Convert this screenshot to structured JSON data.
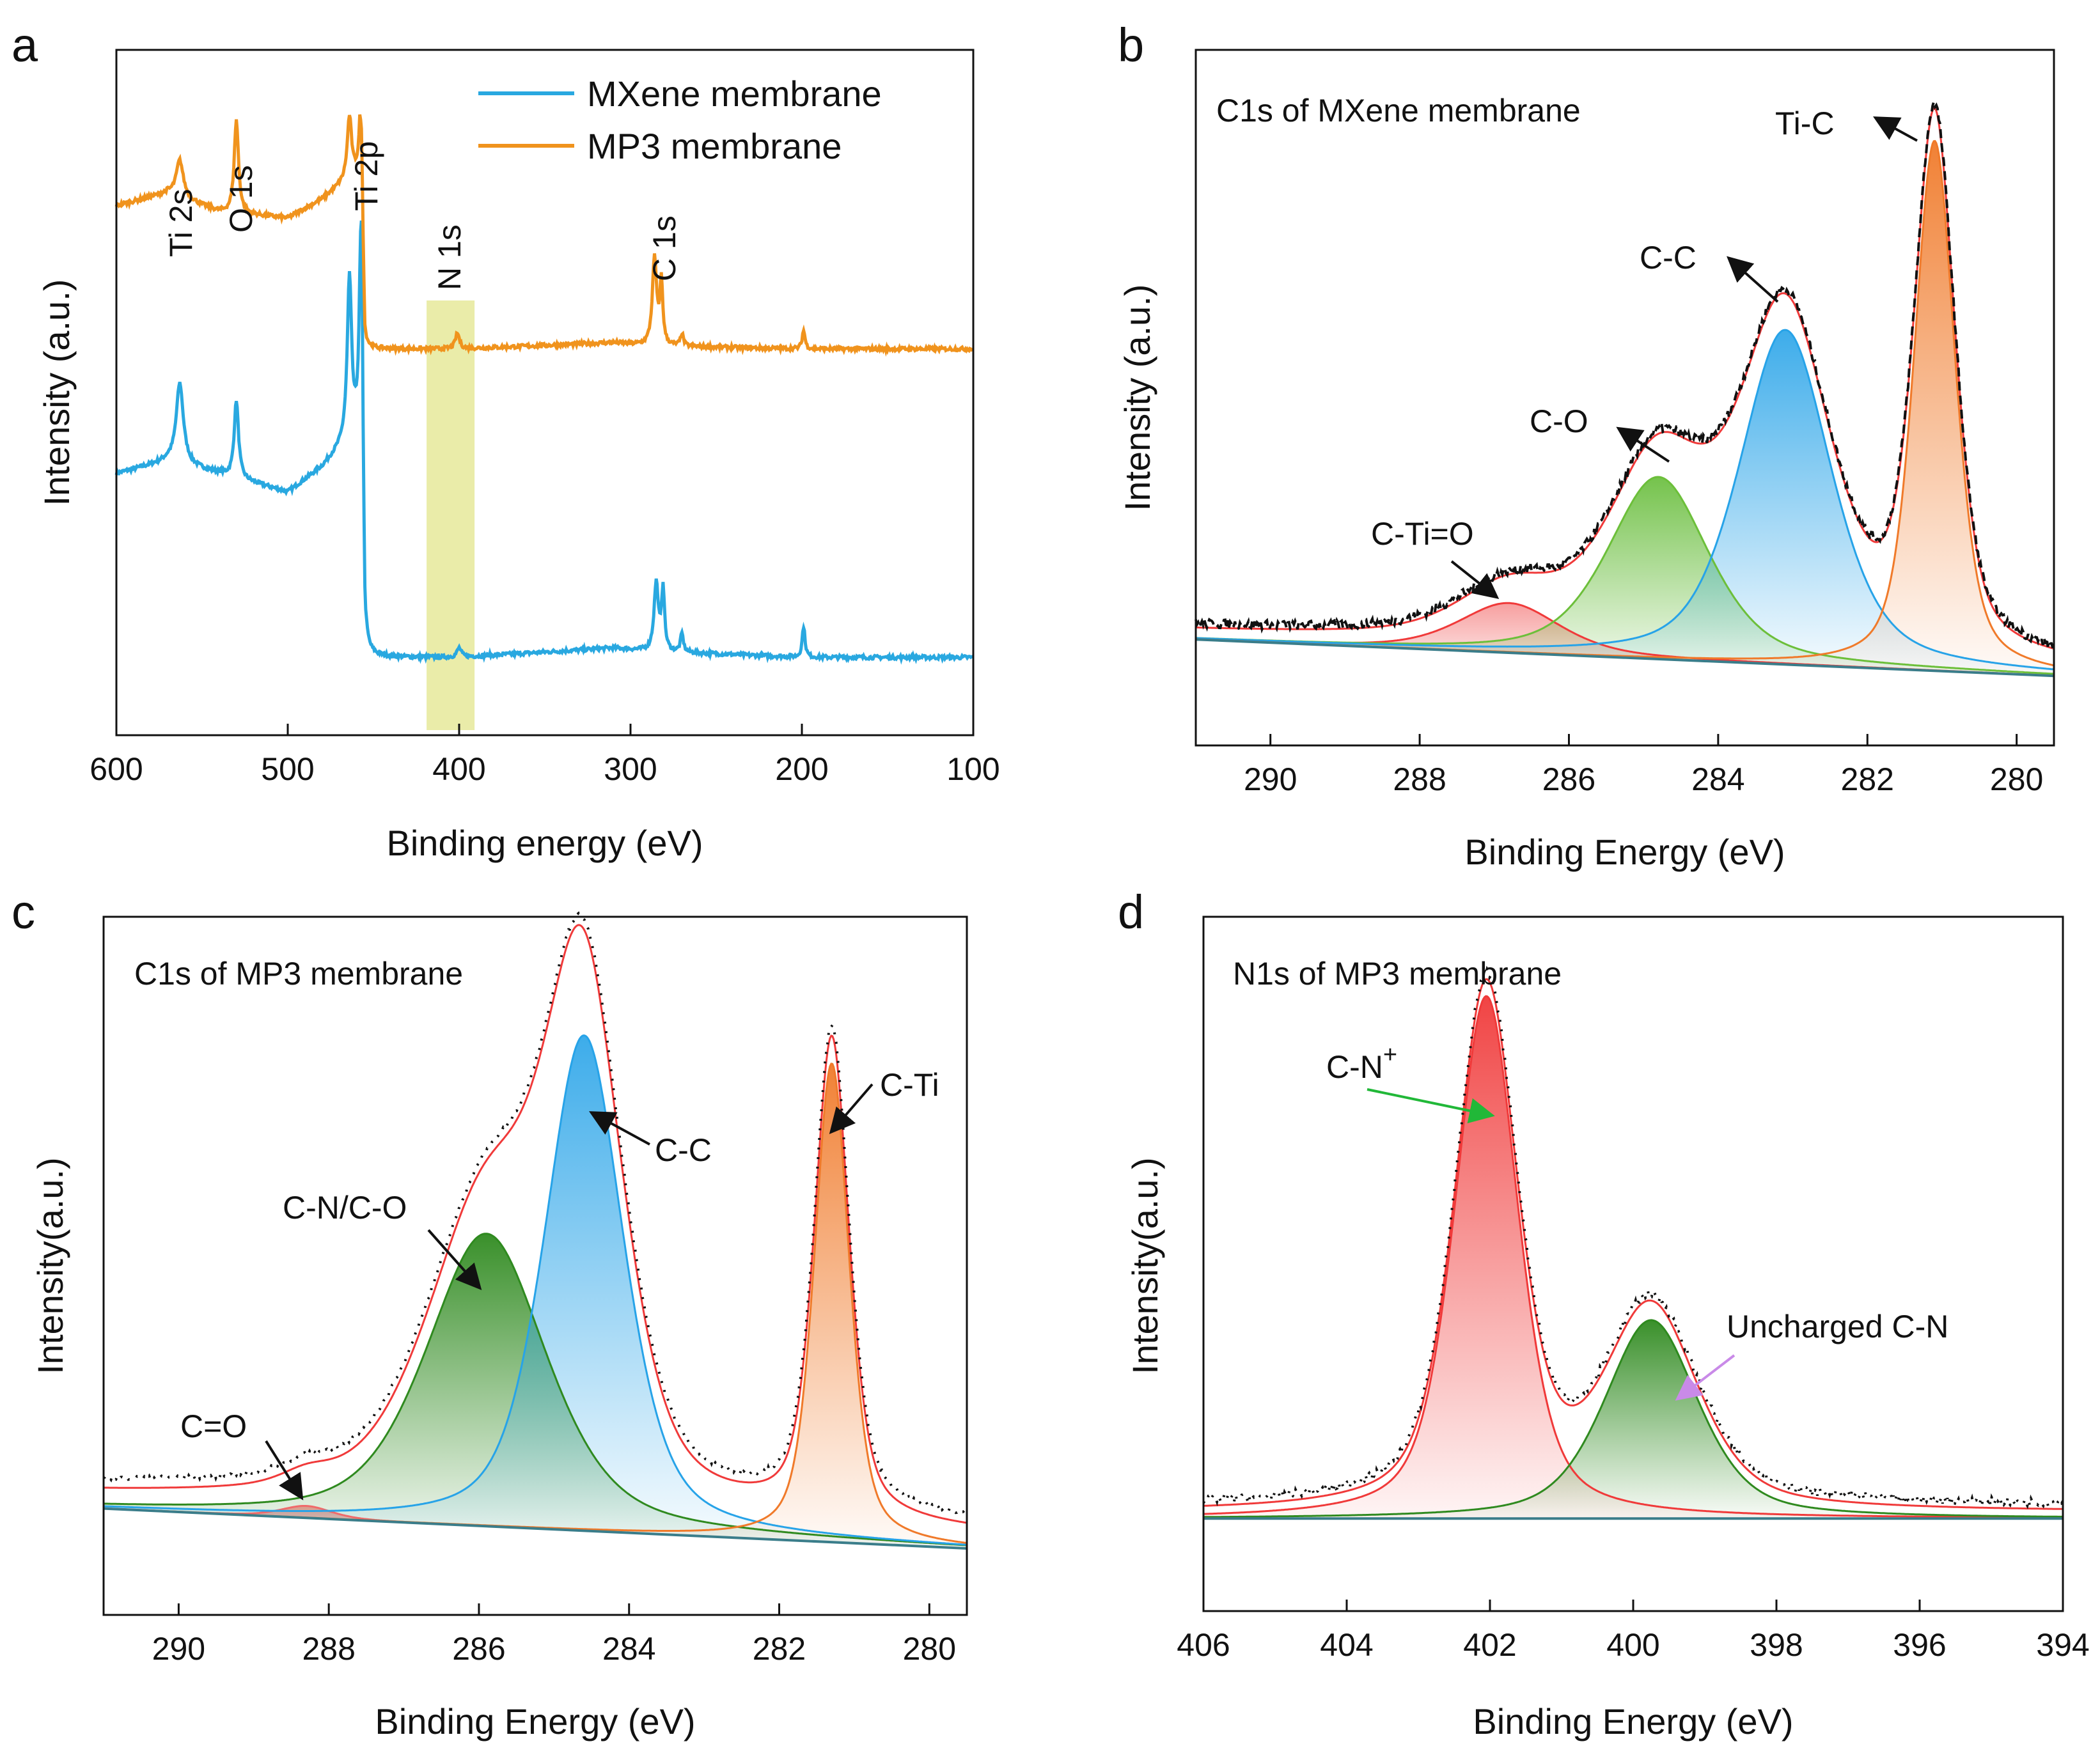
{
  "figure": {
    "type": "XPS spectra multi-panel figure"
  },
  "colors": {
    "mxene": "#29a8e0",
    "mp3": "#f0931d",
    "highlight": "#e8eaa0",
    "red": "#f03a3a",
    "green": "#3a9a24",
    "blue": "#27a3e8",
    "orange": "#f07a2a",
    "arrow_green": "#21b838",
    "arrow_violet": "#c98ae8",
    "dark": "#111111"
  },
  "chart_data": [
    {
      "panel": "a",
      "type": "line",
      "title": "",
      "xlabel": "Binding energy (eV)",
      "ylabel": "Intensity (a.u.)",
      "xlim": [
        600,
        100
      ],
      "ylim": [
        0,
        11
      ],
      "xticks": [
        600,
        500,
        400,
        300,
        200,
        100
      ],
      "legend": {
        "position": "top-right",
        "entries": [
          "MXene membrane",
          "MP3 membrane"
        ]
      },
      "highlight_band": [
        419,
        391
      ],
      "series": [
        {
          "name": "MXene membrane",
          "color": "#29a8e0",
          "baseline": 1.3,
          "base_shape": [
            [
              600,
              4.2
            ],
            [
              570,
              4.4
            ],
            [
              540,
              4.2
            ],
            [
              500,
              3.9
            ],
            [
              480,
              4.3
            ],
            [
              466,
              4.7
            ],
            [
              458,
              4.8
            ],
            [
              455,
              1.25
            ],
            [
              400,
              1.25
            ],
            [
              310,
              1.4
            ],
            [
              290,
              1.35
            ],
            [
              200,
              1.25
            ],
            [
              100,
              1.25
            ]
          ],
          "peaks": [
            [
              563,
              1.3,
              5
            ],
            [
              530,
              1.25,
              3
            ],
            [
              464,
              2.6,
              3
            ],
            [
              457,
              4.5,
              2.2
            ],
            [
              400,
              0.15,
              3
            ],
            [
              285,
              1.1,
              3
            ],
            [
              281,
              1.0,
              2
            ],
            [
              270,
              0.3,
              2
            ],
            [
              199,
              0.5,
              2
            ]
          ]
        },
        {
          "name": "MP3 membrane",
          "color": "#f0931d",
          "base_shape": [
            [
              600,
              8.5
            ],
            [
              570,
              8.7
            ],
            [
              540,
              8.4
            ],
            [
              500,
              8.3
            ],
            [
              480,
              8.6
            ],
            [
              466,
              8.9
            ],
            [
              458,
              9.0
            ],
            [
              455,
              6.2
            ],
            [
              400,
              6.2
            ],
            [
              310,
              6.3
            ],
            [
              290,
              6.25
            ],
            [
              200,
              6.2
            ],
            [
              100,
              6.2
            ]
          ],
          "peaks": [
            [
              563,
              0.6,
              5
            ],
            [
              530,
              1.5,
              3
            ],
            [
              464,
              1.0,
              3
            ],
            [
              457,
              1.6,
              2.2
            ],
            [
              401,
              0.25,
              3
            ],
            [
              286,
              1.4,
              3
            ],
            [
              282,
              1.0,
              2
            ],
            [
              270,
              0.2,
              2
            ],
            [
              199,
              0.3,
              2
            ]
          ]
        }
      ],
      "annotations": [
        {
          "text": "Ti 2s",
          "x": 563
        },
        {
          "text": "O 1s",
          "x": 530
        },
        {
          "text": "Ti 2p",
          "x": 457
        },
        {
          "text": "N 1s",
          "x": 405
        },
        {
          "text": "C 1s",
          "x": 285
        }
      ]
    },
    {
      "panel": "b",
      "type": "line",
      "title": "C1s of MXene membrane",
      "xlabel": "Binding Energy (eV)",
      "ylabel": "Intensity (a.u.)",
      "xlim": [
        291,
        279.5
      ],
      "ylim": [
        0,
        10.5
      ],
      "xticks": [
        290,
        288,
        286,
        284,
        282,
        280
      ],
      "baseline": [
        [
          291,
          1.6
        ],
        [
          279.5,
          1.05
        ]
      ],
      "components": [
        {
          "name": "C-Ti=O",
          "center": 286.8,
          "height": 0.75,
          "width": 1.6,
          "color": "#f03a3a"
        },
        {
          "name": "C-O",
          "center": 284.8,
          "height": 2.75,
          "width": 1.6,
          "color": "#6cbf3a"
        },
        {
          "name": "C-C",
          "center": 283.1,
          "height": 5.05,
          "width": 1.45,
          "color": "#27a3e8"
        },
        {
          "name": "Ti-C",
          "center": 281.1,
          "height": 8.0,
          "width": 0.65,
          "color": "#f07a2a"
        }
      ],
      "annotations": [
        {
          "text": "C-Ti=O",
          "x": 287.5,
          "y": 3.2
        },
        {
          "text": "C-O",
          "x": 286.6,
          "y": 5.4
        },
        {
          "text": "C-C",
          "x": 284.2,
          "y": 7.3
        },
        {
          "text": "Ti-C",
          "x": 282.3,
          "y": 9.5
        }
      ]
    },
    {
      "panel": "c",
      "type": "line",
      "title": "C1s of MP3 membrane",
      "xlabel": "Binding Energy (eV)",
      "ylabel": "Intensity(a.u.)",
      "xlim": [
        291,
        279.5
      ],
      "ylim": [
        0,
        10.5
      ],
      "xticks": [
        290,
        288,
        286,
        284,
        282,
        280
      ],
      "baseline": [
        [
          291,
          1.6
        ],
        [
          279.5,
          1.0
        ]
      ],
      "components": [
        {
          "name": "C=O",
          "center": 288.3,
          "height": 0.18,
          "width": 0.8,
          "color": "#f06a6a"
        },
        {
          "name": "C-N/C-O",
          "center": 285.9,
          "height": 4.4,
          "width": 1.9,
          "color": "#2f8a1f"
        },
        {
          "name": "C-C",
          "center": 284.6,
          "height": 7.45,
          "width": 1.25,
          "color": "#27a3e8"
        },
        {
          "name": "C-Ti",
          "center": 281.3,
          "height": 7.2,
          "width": 0.55,
          "color": "#f07a2a"
        }
      ],
      "annotations": [
        {
          "text": "C=O",
          "x": 288.6,
          "y": 2.2
        },
        {
          "text": "C-N/C-O",
          "x": 286.5,
          "y": 5.3
        },
        {
          "text": "C-C",
          "x": 283.6,
          "y": 7.2
        },
        {
          "text": "C-Ti",
          "x": 280.9,
          "y": 9.5
        }
      ]
    },
    {
      "panel": "d",
      "type": "line",
      "title": "N1s of MP3 membrane",
      "xlabel": "Binding Energy (eV)",
      "ylabel": "Intensity(a.u.)",
      "xlim": [
        406,
        394
      ],
      "ylim": [
        0,
        10.5
      ],
      "xticks": [
        406,
        404,
        402,
        400,
        398,
        396,
        394
      ],
      "baseline": [
        [
          406,
          1.4
        ],
        [
          394,
          1.4
        ]
      ],
      "components": [
        {
          "name": "C-N+",
          "center": 402.05,
          "height": 7.9,
          "width": 1.05,
          "color": "#f03a3a"
        },
        {
          "name": "Uncharged C-N",
          "center": 399.75,
          "height": 3.0,
          "width": 1.55,
          "color": "#2f8a1f"
        }
      ],
      "annotations": [
        {
          "text": "C-N",
          "superscript": "+",
          "x": 403.7,
          "y": 9.6
        },
        {
          "text": "Uncharged C-N",
          "x": 397.0,
          "y": 4.7
        }
      ]
    }
  ],
  "panel_labels": [
    "a",
    "b",
    "c",
    "d"
  ]
}
